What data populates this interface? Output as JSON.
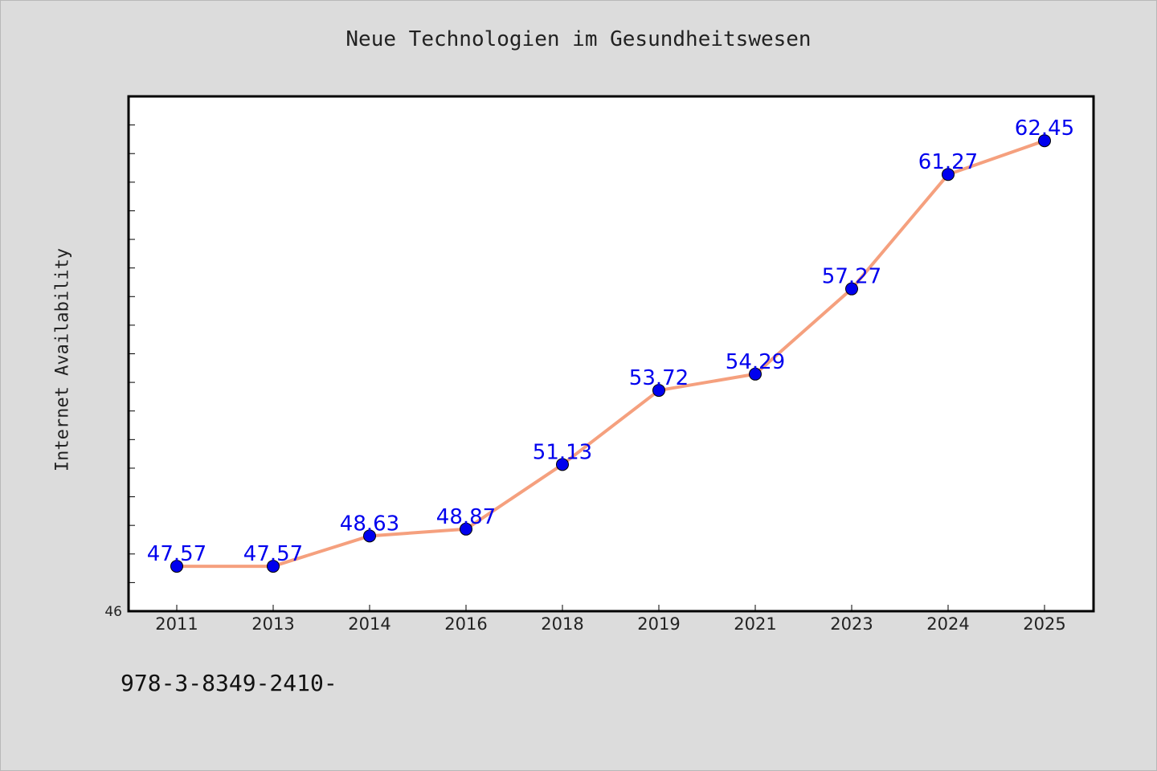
{
  "chart_data": {
    "type": "line",
    "title": "Neue Technologien im Gesundheitswesen",
    "xlabel": "",
    "ylabel": "Internet Availability",
    "categories": [
      "2011",
      "2013",
      "2014",
      "2016",
      "2018",
      "2019",
      "2021",
      "2023",
      "2024",
      "2025"
    ],
    "values": [
      47.57,
      47.57,
      48.63,
      48.87,
      51.13,
      53.72,
      54.29,
      57.27,
      61.27,
      62.45
    ],
    "data_labels": [
      "47.57",
      "47.57",
      "48.63",
      "48.87",
      "51.13",
      "53.72",
      "54.29",
      "57.27",
      "61.27",
      "62.45"
    ],
    "ylim": [
      46,
      64
    ],
    "y_tick_labels": [
      "46"
    ],
    "y_minor_tick_step": 1,
    "grid": false,
    "line_color": "#f5a07e",
    "marker_color": "#0000ee",
    "label_color": "#0000ee"
  },
  "footer": {
    "isbn": "978-3-8349-2410-"
  }
}
